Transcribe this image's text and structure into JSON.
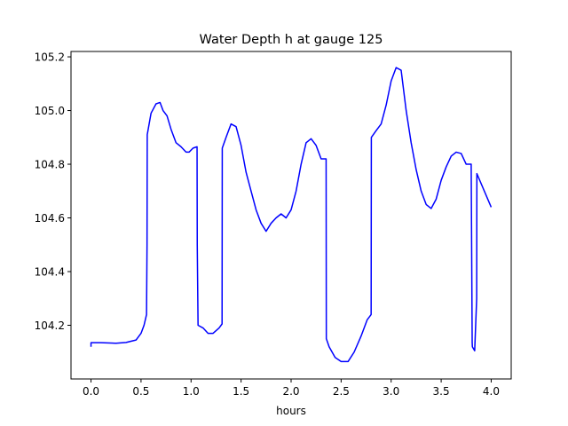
{
  "chart_data": {
    "type": "line",
    "title": "Water Depth h at gauge 125",
    "xlabel": "hours",
    "ylabel": "",
    "xlim": [
      -0.2,
      4.2
    ],
    "ylim": [
      104.0,
      105.22
    ],
    "xticks": [
      0.0,
      0.5,
      1.0,
      1.5,
      2.0,
      2.5,
      3.0,
      3.5,
      4.0
    ],
    "xtick_labels": [
      "0.0",
      "0.5",
      "1.0",
      "1.5",
      "2.0",
      "2.5",
      "3.0",
      "3.5",
      "4.0"
    ],
    "yticks": [
      104.2,
      104.4,
      104.6,
      104.8,
      105.0,
      105.2
    ],
    "ytick_labels": [
      "104.2",
      "104.4",
      "104.6",
      "104.8",
      "105.0",
      "105.2"
    ],
    "grid": false,
    "series": [
      {
        "color": "#0000ff",
        "x": [
          0.0,
          0.0,
          0.1,
          0.25,
          0.35,
          0.45,
          0.5,
          0.53,
          0.555,
          0.56,
          0.562,
          0.6,
          0.65,
          0.69,
          0.72,
          0.76,
          0.8,
          0.85,
          0.9,
          0.95,
          0.98,
          1.02,
          1.06,
          1.062,
          1.07,
          1.12,
          1.17,
          1.22,
          1.28,
          1.31,
          1.312,
          1.35,
          1.4,
          1.45,
          1.5,
          1.55,
          1.6,
          1.65,
          1.7,
          1.75,
          1.8,
          1.85,
          1.9,
          1.95,
          2.0,
          2.05,
          2.1,
          2.15,
          2.2,
          2.25,
          2.3,
          2.35,
          2.352,
          2.38,
          2.44,
          2.5,
          2.57,
          2.63,
          2.7,
          2.76,
          2.8,
          2.802,
          2.85,
          2.9,
          2.95,
          3.0,
          3.05,
          3.1,
          3.15,
          3.2,
          3.25,
          3.3,
          3.35,
          3.4,
          3.45,
          3.5,
          3.55,
          3.6,
          3.65,
          3.7,
          3.75,
          3.8,
          3.81,
          3.812,
          3.835,
          3.855,
          3.857,
          4.0
        ],
        "y": [
          104.12,
          104.135,
          104.135,
          104.133,
          104.136,
          104.145,
          104.17,
          104.2,
          104.24,
          104.5,
          104.91,
          104.99,
          105.025,
          105.03,
          105.0,
          104.98,
          104.93,
          104.88,
          104.865,
          104.845,
          104.845,
          104.86,
          104.865,
          104.5,
          104.2,
          104.19,
          104.17,
          104.17,
          104.19,
          104.205,
          104.86,
          104.9,
          104.95,
          104.94,
          104.87,
          104.77,
          104.7,
          104.63,
          104.58,
          104.55,
          104.58,
          104.6,
          104.615,
          104.6,
          104.63,
          104.7,
          104.8,
          104.88,
          104.895,
          104.87,
          104.82,
          104.82,
          104.15,
          104.12,
          104.08,
          104.065,
          104.065,
          104.1,
          104.16,
          104.22,
          104.24,
          104.9,
          104.925,
          104.95,
          105.02,
          105.11,
          105.16,
          105.15,
          105.0,
          104.88,
          104.78,
          104.7,
          104.65,
          104.635,
          104.67,
          104.74,
          104.79,
          104.83,
          104.845,
          104.84,
          104.8,
          104.8,
          104.135,
          104.12,
          104.105,
          104.3,
          104.765,
          104.64
        ]
      }
    ]
  }
}
